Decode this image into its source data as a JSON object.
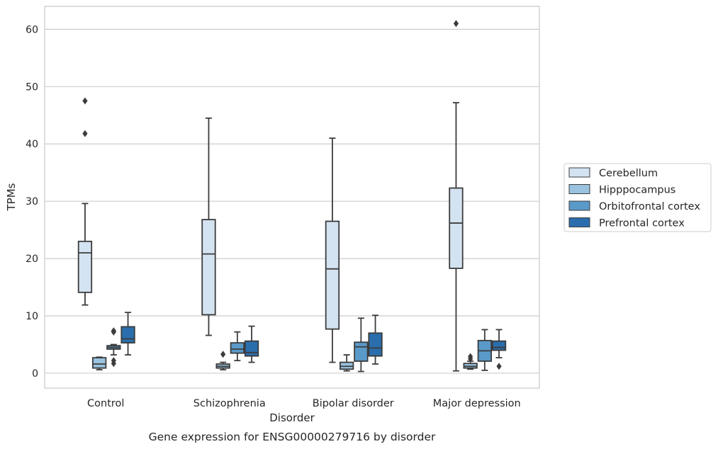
{
  "chart_data": {
    "type": "boxplot",
    "title": "",
    "caption": "Gene expression for ENSG00000279716 by disorder",
    "xlabel": "Disorder",
    "ylabel": "TPMs",
    "ylim": [
      -2.6,
      64
    ],
    "yticks": [
      0,
      10,
      20,
      30,
      40,
      50,
      60
    ],
    "grid": "horizontal",
    "legend_position": "right",
    "categories": [
      "Control",
      "Schizophrenia",
      "Bipolar disorder",
      "Major depression"
    ],
    "series": [
      {
        "name": "Cerebellum",
        "color": "#d4e3f1",
        "boxes": [
          {
            "low": 11.9,
            "q1": 14.1,
            "median": 21.0,
            "q3": 23.0,
            "high": 29.6,
            "outliers": [
              41.8,
              47.5
            ]
          },
          {
            "low": 6.6,
            "q1": 10.2,
            "median": 20.8,
            "q3": 26.8,
            "high": 44.5,
            "outliers": []
          },
          {
            "low": 1.9,
            "q1": 7.7,
            "median": 18.2,
            "q3": 26.5,
            "high": 41.0,
            "outliers": []
          },
          {
            "low": 0.4,
            "q1": 18.3,
            "median": 26.2,
            "q3": 32.3,
            "high": 47.2,
            "outliers": [
              61.0
            ]
          }
        ]
      },
      {
        "name": "Hipppocampus",
        "color": "#9ac3df",
        "boxes": [
          {
            "low": 0.6,
            "q1": 0.9,
            "median": 1.6,
            "q3": 2.7,
            "high": 2.8,
            "outliers": []
          },
          {
            "low": 0.6,
            "q1": 0.9,
            "median": 1.2,
            "q3": 1.6,
            "high": 1.9,
            "outliers": [
              3.3
            ]
          },
          {
            "low": 0.4,
            "q1": 0.7,
            "median": 1.2,
            "q3": 1.9,
            "high": 3.2,
            "outliers": []
          },
          {
            "low": 0.7,
            "q1": 0.9,
            "median": 1.2,
            "q3": 1.7,
            "high": 2.1,
            "outliers": [
              2.5,
              2.9
            ]
          }
        ]
      },
      {
        "name": "Orbitofrontal cortex",
        "color": "#5a9ac9",
        "boxes": [
          {
            "low": 3.2,
            "q1": 4.2,
            "median": 4.5,
            "q3": 4.8,
            "high": 5.0,
            "outliers": [
              1.7,
              2.2,
              7.2,
              7.4
            ]
          },
          {
            "low": 2.2,
            "q1": 3.5,
            "median": 4.2,
            "q3": 5.3,
            "high": 7.2,
            "outliers": []
          },
          {
            "low": 0.3,
            "q1": 2.1,
            "median": 4.6,
            "q3": 5.4,
            "high": 9.6,
            "outliers": []
          },
          {
            "low": 0.5,
            "q1": 2.1,
            "median": 3.9,
            "q3": 5.7,
            "high": 7.6,
            "outliers": []
          }
        ]
      },
      {
        "name": "Prefrontal cortex",
        "color": "#2b6ead",
        "boxes": [
          {
            "low": 3.2,
            "q1": 5.3,
            "median": 6.0,
            "q3": 8.1,
            "high": 10.6,
            "outliers": []
          },
          {
            "low": 1.9,
            "q1": 3.0,
            "median": 3.6,
            "q3": 5.6,
            "high": 8.2,
            "outliers": []
          },
          {
            "low": 1.6,
            "q1": 3.0,
            "median": 4.4,
            "q3": 7.0,
            "high": 10.1,
            "outliers": []
          },
          {
            "low": 2.7,
            "q1": 4.0,
            "median": 4.5,
            "q3": 5.6,
            "high": 7.6,
            "outliers": [
              1.2
            ]
          }
        ]
      }
    ]
  }
}
